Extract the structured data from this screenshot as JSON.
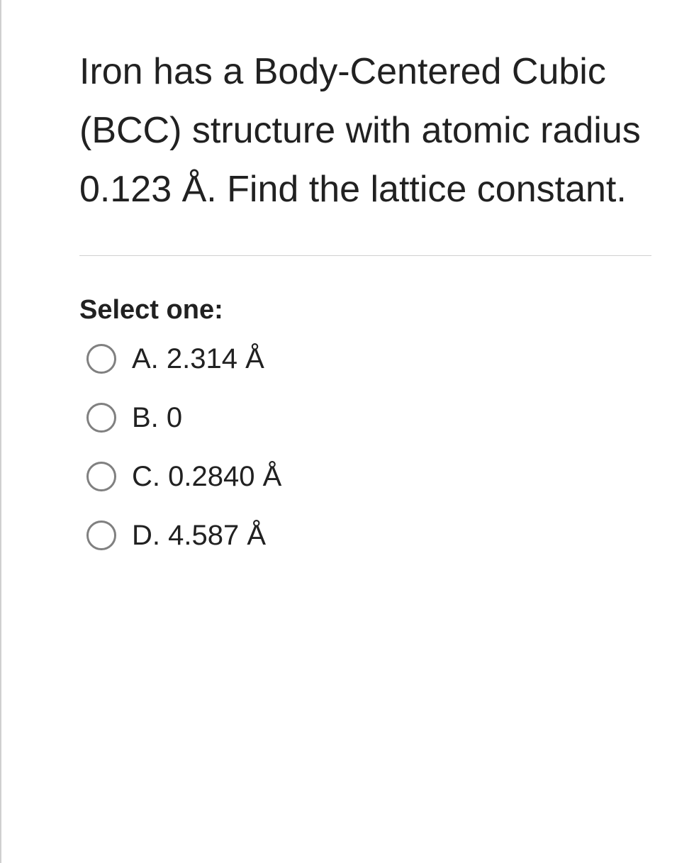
{
  "question": {
    "text": "Iron has a Body-Centered Cubic (BCC) structure with atomic radius 0.123 Å. Find the lattice constant."
  },
  "prompt": {
    "select_label": "Select one:"
  },
  "options": [
    {
      "label": "A. 2.314 Å"
    },
    {
      "label": "B. 0"
    },
    {
      "label": "C. 0.2840 Å"
    },
    {
      "label": "D. 4.587 Å"
    }
  ],
  "styles": {
    "text_color": "#212121",
    "border_color": "#d0d0d0",
    "radio_border_color": "#808080",
    "background_color": "#ffffff",
    "question_fontsize": 52,
    "select_fontsize": 38,
    "option_fontsize": 40
  }
}
